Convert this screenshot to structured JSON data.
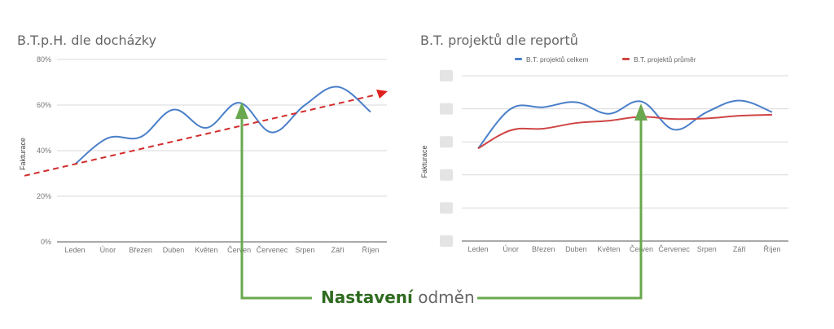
{
  "chart_data": [
    {
      "type": "line",
      "title": "B.T.p.H. dle docházky",
      "xlabel": "",
      "ylabel": "Fakturace",
      "categories": [
        "Leden",
        "Únor",
        "Březen",
        "Duben",
        "Květen",
        "Červen",
        "Červenec",
        "Srpen",
        "Září",
        "Říjen"
      ],
      "yticks": [
        "0%",
        "20%",
        "40%",
        "60%",
        "80%"
      ],
      "ylim": [
        0,
        80
      ],
      "grid": true,
      "series": [
        {
          "name": "B.T.p.H.",
          "color": "#4a7fc9",
          "values": [
            34,
            45.5,
            46,
            58,
            50,
            61,
            48,
            60,
            68,
            57
          ]
        }
      ],
      "trendline": {
        "color": "#d22c2c",
        "style": "dashed",
        "start": 29,
        "end": 65
      }
    },
    {
      "type": "line",
      "title": "B.T. projektů dle reportů",
      "xlabel": "",
      "ylabel": "Fakturace",
      "categories": [
        "Leden",
        "Únor",
        "Březen",
        "Duben",
        "Květen",
        "Červen",
        "Červenec",
        "Srpen",
        "Září",
        "Říjen"
      ],
      "yticks_redacted": true,
      "ylim": [
        0,
        5
      ],
      "grid": true,
      "legend_position": "top",
      "series": [
        {
          "name": "B.T. projektů celkem",
          "color": "#4a7fc9",
          "values": [
            2.8,
            4.0,
            4.05,
            4.2,
            3.85,
            4.22,
            3.37,
            3.9,
            4.25,
            3.9
          ]
        },
        {
          "name": "B.T. projektů průměr",
          "color": "#d04545",
          "values": [
            2.8,
            3.35,
            3.4,
            3.57,
            3.64,
            3.76,
            3.69,
            3.71,
            3.79,
            3.82
          ]
        }
      ]
    }
  ],
  "callout": {
    "bold_text": "Nastavení",
    "light_text": "odměn",
    "color": "#6aa84f",
    "target_category": "Červen"
  }
}
